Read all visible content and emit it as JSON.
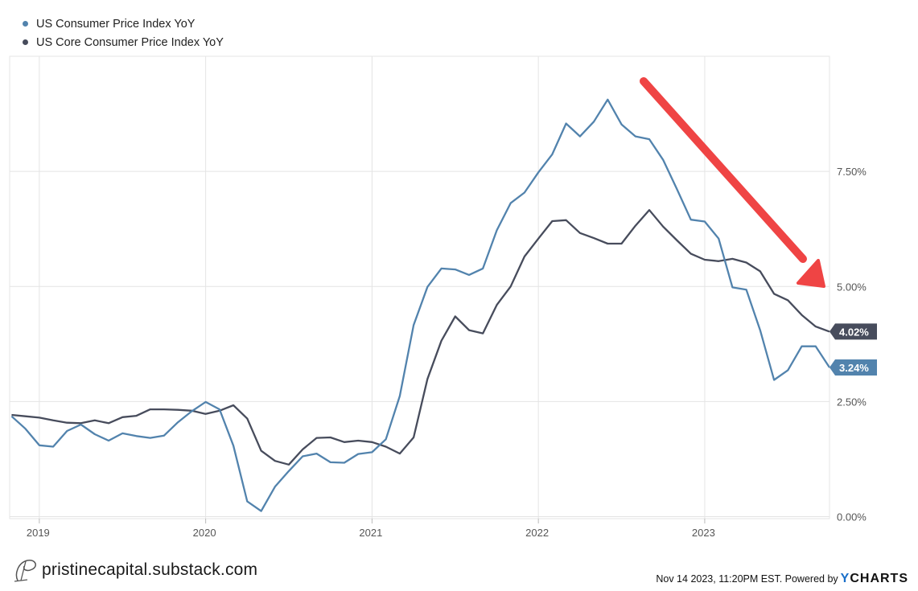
{
  "legend": [
    {
      "label": "US Consumer Price Index YoY",
      "color": "#5283ad"
    },
    {
      "label": "US Core Consumer Price Index YoY",
      "color": "#474c5c"
    }
  ],
  "chart_data": {
    "type": "line",
    "x_range": [
      "2018-11",
      "2023-10"
    ],
    "ylim": [
      0,
      10
    ],
    "yticks": [
      0,
      2.5,
      5,
      7.5
    ],
    "ytick_labels": [
      "0.00%",
      "2.50%",
      "5.00%",
      "7.50%"
    ],
    "xticks": [
      "2019-01",
      "2020-01",
      "2021-01",
      "2022-01",
      "2023-01"
    ],
    "xtick_labels": [
      "2019",
      "2020",
      "2021",
      "2022",
      "2023"
    ],
    "grid": true,
    "legend_position": "top-left",
    "series": [
      {
        "name": "US Consumer Price Index YoY",
        "color": "#5283ad",
        "end_label": "3.24%",
        "x": [
          "2018-11",
          "2018-12",
          "2019-01",
          "2019-02",
          "2019-03",
          "2019-04",
          "2019-05",
          "2019-06",
          "2019-07",
          "2019-08",
          "2019-09",
          "2019-10",
          "2019-11",
          "2019-12",
          "2020-01",
          "2020-02",
          "2020-03",
          "2020-04",
          "2020-05",
          "2020-06",
          "2020-07",
          "2020-08",
          "2020-09",
          "2020-10",
          "2020-11",
          "2020-12",
          "2021-01",
          "2021-02",
          "2021-03",
          "2021-04",
          "2021-05",
          "2021-06",
          "2021-07",
          "2021-08",
          "2021-09",
          "2021-10",
          "2021-11",
          "2021-12",
          "2022-01",
          "2022-02",
          "2022-03",
          "2022-04",
          "2022-05",
          "2022-06",
          "2022-07",
          "2022-08",
          "2022-09",
          "2022-10",
          "2022-11",
          "2022-12",
          "2023-01",
          "2023-02",
          "2023-03",
          "2023-04",
          "2023-05",
          "2023-06",
          "2023-07",
          "2023-08",
          "2023-09",
          "2023-10"
        ],
        "values": [
          2.18,
          1.91,
          1.55,
          1.52,
          1.86,
          2.0,
          1.79,
          1.65,
          1.81,
          1.75,
          1.71,
          1.76,
          2.05,
          2.29,
          2.49,
          2.33,
          1.54,
          0.33,
          0.12,
          0.65,
          0.99,
          1.31,
          1.37,
          1.18,
          1.17,
          1.36,
          1.4,
          1.68,
          2.62,
          4.16,
          4.99,
          5.39,
          5.37,
          5.25,
          5.39,
          6.22,
          6.81,
          7.04,
          7.48,
          7.87,
          8.54,
          8.26,
          8.58,
          9.06,
          8.52,
          8.26,
          8.2,
          7.75,
          7.11,
          6.45,
          6.41,
          6.04,
          4.98,
          4.93,
          4.05,
          2.97,
          3.18,
          3.7,
          3.7,
          3.24
        ]
      },
      {
        "name": "US Core Consumer Price Index YoY",
        "color": "#474c5c",
        "end_label": "4.02%",
        "x": [
          "2018-11",
          "2018-12",
          "2019-01",
          "2019-02",
          "2019-03",
          "2019-04",
          "2019-05",
          "2019-06",
          "2019-07",
          "2019-08",
          "2019-09",
          "2019-10",
          "2019-11",
          "2019-12",
          "2020-01",
          "2020-02",
          "2020-03",
          "2020-04",
          "2020-05",
          "2020-06",
          "2020-07",
          "2020-08",
          "2020-09",
          "2020-10",
          "2020-11",
          "2020-12",
          "2021-01",
          "2021-02",
          "2021-03",
          "2021-04",
          "2021-05",
          "2021-06",
          "2021-07",
          "2021-08",
          "2021-09",
          "2021-10",
          "2021-11",
          "2021-12",
          "2022-01",
          "2022-02",
          "2022-03",
          "2022-04",
          "2022-05",
          "2022-06",
          "2022-07",
          "2022-08",
          "2022-09",
          "2022-10",
          "2022-11",
          "2022-12",
          "2023-01",
          "2023-02",
          "2023-03",
          "2023-04",
          "2023-05",
          "2023-06",
          "2023-07",
          "2023-08",
          "2023-09",
          "2023-10"
        ],
        "values": [
          2.21,
          2.18,
          2.15,
          2.09,
          2.04,
          2.03,
          2.09,
          2.03,
          2.16,
          2.19,
          2.33,
          2.33,
          2.32,
          2.3,
          2.23,
          2.3,
          2.42,
          2.13,
          1.43,
          1.21,
          1.13,
          1.46,
          1.71,
          1.72,
          1.62,
          1.65,
          1.62,
          1.52,
          1.37,
          1.72,
          2.99,
          3.82,
          4.35,
          4.05,
          3.98,
          4.6,
          5.0,
          5.65,
          6.04,
          6.42,
          6.44,
          6.16,
          6.05,
          5.93,
          5.93,
          6.32,
          6.66,
          6.3,
          6.0,
          5.71,
          5.58,
          5.55,
          5.6,
          5.52,
          5.33,
          4.84,
          4.7,
          4.38,
          4.13,
          4.02
        ]
      }
    ],
    "annotation": {
      "type": "arrow",
      "color": "#ef4444",
      "direction": "down-right"
    }
  },
  "footer": {
    "brand": "pristinecapital.substack.com",
    "timestamp": "Nov 14 2023, 11:20PM EST. Powered by",
    "logo_y": "Y",
    "logo_rest": "CHARTS"
  }
}
